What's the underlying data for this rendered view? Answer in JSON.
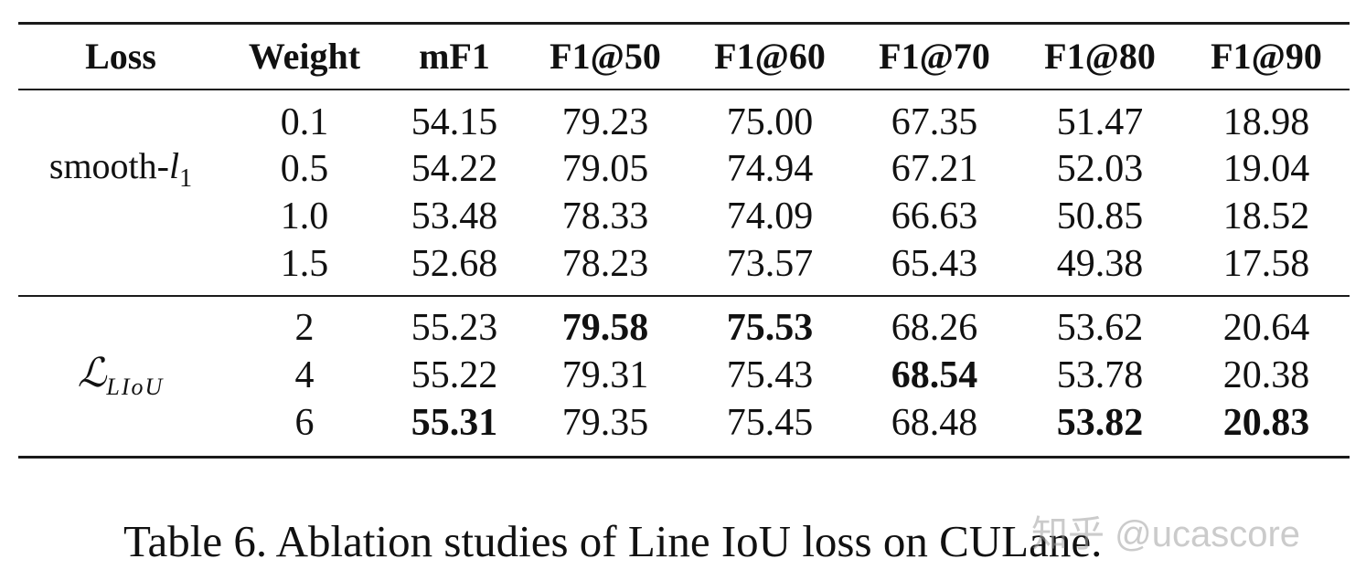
{
  "table": {
    "headers": [
      "Loss",
      "Weight",
      "mF1",
      "F1@50",
      "F1@60",
      "F1@70",
      "F1@80",
      "F1@90"
    ],
    "groups": [
      {
        "loss_main": "smooth-",
        "loss_sym": "l",
        "loss_sub": "1",
        "rows": [
          {
            "weight": "0.1",
            "values": [
              "54.15",
              "79.23",
              "75.00",
              "67.35",
              "51.47",
              "18.98"
            ],
            "bold": [
              false,
              false,
              false,
              false,
              false,
              false
            ]
          },
          {
            "weight": "0.5",
            "values": [
              "54.22",
              "79.05",
              "74.94",
              "67.21",
              "52.03",
              "19.04"
            ],
            "bold": [
              false,
              false,
              false,
              false,
              false,
              false
            ]
          },
          {
            "weight": "1.0",
            "values": [
              "53.48",
              "78.33",
              "74.09",
              "66.63",
              "50.85",
              "18.52"
            ],
            "bold": [
              false,
              false,
              false,
              false,
              false,
              false
            ]
          },
          {
            "weight": "1.5",
            "values": [
              "52.68",
              "78.23",
              "73.57",
              "65.43",
              "49.38",
              "17.58"
            ],
            "bold": [
              false,
              false,
              false,
              false,
              false,
              false
            ]
          }
        ]
      },
      {
        "loss_main": "ℒ",
        "loss_sym": "",
        "loss_sub": "LIoU",
        "rows": [
          {
            "weight": "2",
            "values": [
              "55.23",
              "79.58",
              "75.53",
              "68.26",
              "53.62",
              "20.64"
            ],
            "bold": [
              false,
              true,
              true,
              false,
              false,
              false
            ]
          },
          {
            "weight": "4",
            "values": [
              "55.22",
              "79.31",
              "75.43",
              "68.54",
              "53.78",
              "20.38"
            ],
            "bold": [
              false,
              false,
              false,
              true,
              false,
              false
            ]
          },
          {
            "weight": "6",
            "values": [
              "55.31",
              "79.35",
              "75.45",
              "68.48",
              "53.82",
              "20.83"
            ],
            "bold": [
              true,
              false,
              false,
              false,
              true,
              true
            ]
          }
        ]
      }
    ]
  },
  "caption": "Table 6. Ablation studies of Line IoU loss on CULane.",
  "watermark": "知乎 @ucascore"
}
